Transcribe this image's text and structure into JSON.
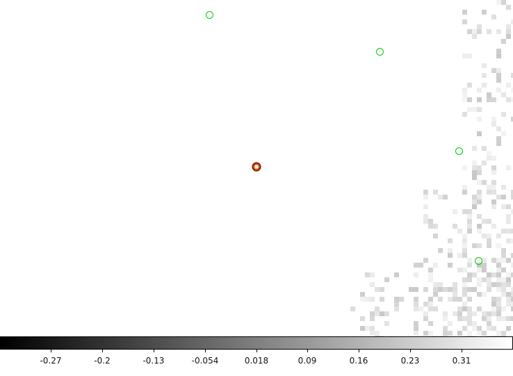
{
  "viewer": {
    "markers": [
      "green-circle-region",
      "green-circle-region",
      "green-circle-region",
      "green-circle-region"
    ],
    "target_marker": "red-circle-target"
  },
  "colorbar": {
    "gradient": [
      "#000000",
      "#ffffff"
    ],
    "ticks": [
      "-0.27",
      "-0.2",
      "-0.13",
      "-0.054",
      "0.018",
      "0.09",
      "0.16",
      "0.23",
      "0.31"
    ]
  },
  "colors": {
    "marker": "#00cc00",
    "target_outer": "#8b1a00",
    "target_inner": "#ff5a00"
  }
}
